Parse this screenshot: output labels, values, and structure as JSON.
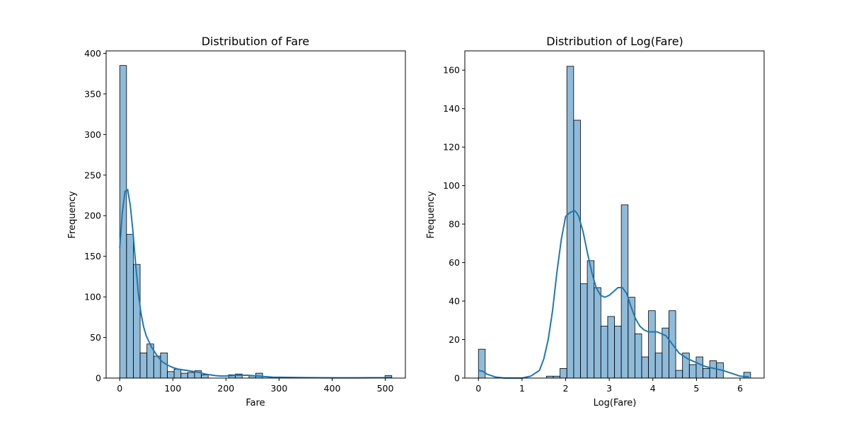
{
  "chart_data": [
    {
      "type": "histogram",
      "title": "Distribution of Fare",
      "xlabel": "Fare",
      "ylabel": "Frequency",
      "xlim": [
        -25.6,
        537.9
      ],
      "ylim": [
        0,
        403
      ],
      "xticks": [
        0,
        100,
        200,
        300,
        400,
        500
      ],
      "yticks": [
        0,
        50,
        100,
        150,
        200,
        250,
        300,
        350,
        400
      ],
      "bar_color": "#1f77b4",
      "bar_alpha": 0.5,
      "edge_color": "#000000",
      "kde_color": "#1f77b4",
      "bins": {
        "start": 0,
        "width": 12.808,
        "counts": [
          385,
          177,
          140,
          31,
          42,
          27,
          31,
          8,
          11,
          6,
          7,
          9,
          4,
          0,
          0,
          0,
          4,
          5,
          0,
          3,
          6,
          0,
          0,
          0,
          0,
          0,
          0,
          0,
          0,
          0,
          0,
          0,
          0,
          0,
          0,
          0,
          0,
          0,
          0,
          3
        ]
      },
      "kde": {
        "x": [
          0,
          5,
          10,
          15,
          20,
          25,
          30,
          35,
          40,
          45,
          50,
          55,
          60,
          65,
          70,
          75,
          80,
          90,
          100,
          110,
          120,
          130,
          140,
          150,
          160,
          170,
          180,
          190,
          200,
          210,
          220,
          230,
          240,
          250,
          260,
          270,
          280,
          290,
          300,
          350,
          400,
          450,
          500,
          512
        ],
        "y": [
          160,
          205,
          230,
          232,
          212,
          180,
          140,
          105,
          80,
          63,
          52,
          45,
          38,
          33,
          28,
          24,
          20,
          16,
          13,
          11,
          10,
          9,
          8,
          7,
          5,
          4,
          3,
          2.5,
          2.5,
          3,
          3.5,
          3.5,
          3.5,
          3,
          2.5,
          2,
          1.5,
          1,
          1,
          0.5,
          0.3,
          0.3,
          0.5,
          0.8
        ]
      }
    },
    {
      "type": "histogram",
      "title": "Distribution of Log(Fare)",
      "xlabel": "Log(Fare)",
      "ylabel": "Frequency",
      "xlim": [
        -0.312,
        6.551
      ],
      "ylim": [
        0,
        170
      ],
      "xticks": [
        0,
        1,
        2,
        3,
        4,
        5,
        6
      ],
      "yticks": [
        0,
        20,
        40,
        60,
        80,
        100,
        120,
        140,
        160
      ],
      "bar_color": "#1f77b4",
      "bar_alpha": 0.5,
      "edge_color": "#000000",
      "kde_color": "#1f77b4",
      "bins": {
        "start": 0,
        "width": 0.156,
        "counts": [
          15,
          0,
          0,
          0,
          0,
          0,
          0,
          0,
          0,
          0,
          1,
          1,
          5,
          162,
          134,
          49,
          61,
          47,
          27,
          32,
          27,
          90,
          42,
          23,
          11,
          35,
          13,
          26,
          35,
          4,
          13,
          7,
          11,
          5,
          9,
          8,
          0,
          0,
          0,
          3
        ]
      },
      "kde": {
        "x": [
          0,
          0.1,
          0.2,
          0.4,
          0.6,
          0.8,
          1.0,
          1.2,
          1.4,
          1.5,
          1.6,
          1.7,
          1.8,
          1.9,
          2.0,
          2.1,
          2.2,
          2.25,
          2.3,
          2.4,
          2.5,
          2.6,
          2.7,
          2.8,
          2.9,
          3.0,
          3.1,
          3.2,
          3.3,
          3.4,
          3.5,
          3.6,
          3.7,
          3.8,
          3.9,
          4.0,
          4.1,
          4.2,
          4.3,
          4.4,
          4.5,
          4.6,
          4.8,
          5.0,
          5.2,
          5.4,
          5.6,
          5.8,
          6.0,
          6.2
        ],
        "y": [
          4,
          3.5,
          2,
          0.5,
          0,
          0,
          0,
          1,
          4,
          10,
          20,
          35,
          55,
          72,
          84,
          86,
          87,
          86,
          84,
          76,
          65,
          55,
          47,
          43,
          42,
          43,
          45,
          47,
          47,
          44,
          37,
          31,
          27,
          25,
          24,
          24,
          24,
          23,
          22,
          19,
          16,
          13,
          10,
          8,
          6,
          5,
          4,
          2.5,
          1,
          0.7
        ]
      }
    }
  ]
}
